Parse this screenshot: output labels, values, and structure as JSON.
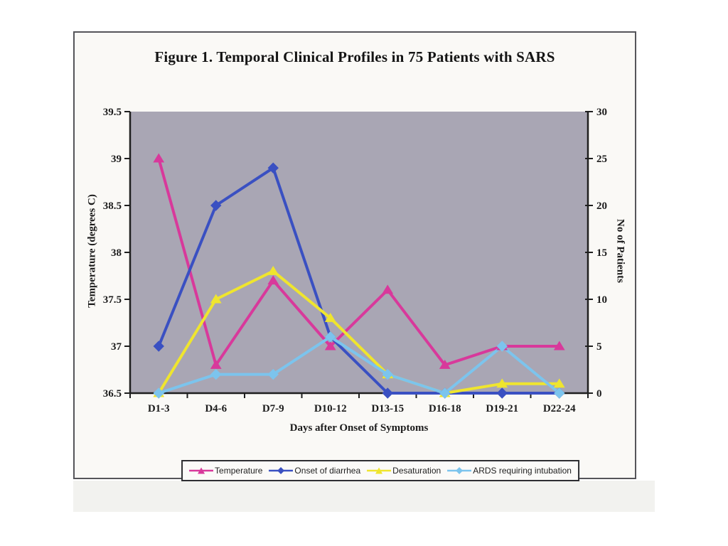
{
  "chart_data": {
    "type": "line",
    "title": "Figure 1. Temporal Clinical Profiles in 75 Patients with SARS",
    "xlabel": "Days after Onset of Symptoms",
    "categories": [
      "D1-3",
      "D4-6",
      "D7-9",
      "D10-12",
      "D13-15",
      "D16-18",
      "D19-21",
      "D22-24"
    ],
    "left_axis": {
      "label": "Temperature (degrees C)",
      "min": 36.5,
      "max": 39.5,
      "tick_labels_top_to_bottom": [
        "39.5",
        "39",
        "38.5",
        "38",
        "37.5",
        "37",
        "36.5"
      ]
    },
    "right_axis": {
      "label": "No of Patients",
      "min": 0,
      "max": 30,
      "tick_labels_top_to_bottom": [
        "30",
        "25",
        "20",
        "15",
        "10",
        "5",
        "0"
      ]
    },
    "series": [
      {
        "name": "Temperature",
        "axis": "left",
        "color": "#d8399b",
        "marker": "triangle",
        "values": [
          39.0,
          36.8,
          37.7,
          37.0,
          37.6,
          36.8,
          37.0,
          37.0
        ]
      },
      {
        "name": "Onset of diarrhea",
        "axis": "right",
        "color": "#3a50c2",
        "marker": "diamond",
        "values": [
          5,
          20,
          24,
          6,
          0,
          0,
          0,
          0
        ]
      },
      {
        "name": "Desaturation",
        "axis": "right",
        "color": "#efe52e",
        "marker": "triangle",
        "values": [
          0,
          10,
          13,
          8,
          2,
          0,
          1,
          1
        ]
      },
      {
        "name": "ARDS requiring intubation",
        "axis": "right",
        "color": "#7cc4ed",
        "marker": "diamond",
        "values": [
          0,
          2,
          2,
          6,
          2,
          0,
          5,
          0
        ]
      }
    ],
    "plot_background": "#a9a6b4",
    "axis_color": "#1f1f1f",
    "grid": false,
    "legend_position": "bottom"
  }
}
